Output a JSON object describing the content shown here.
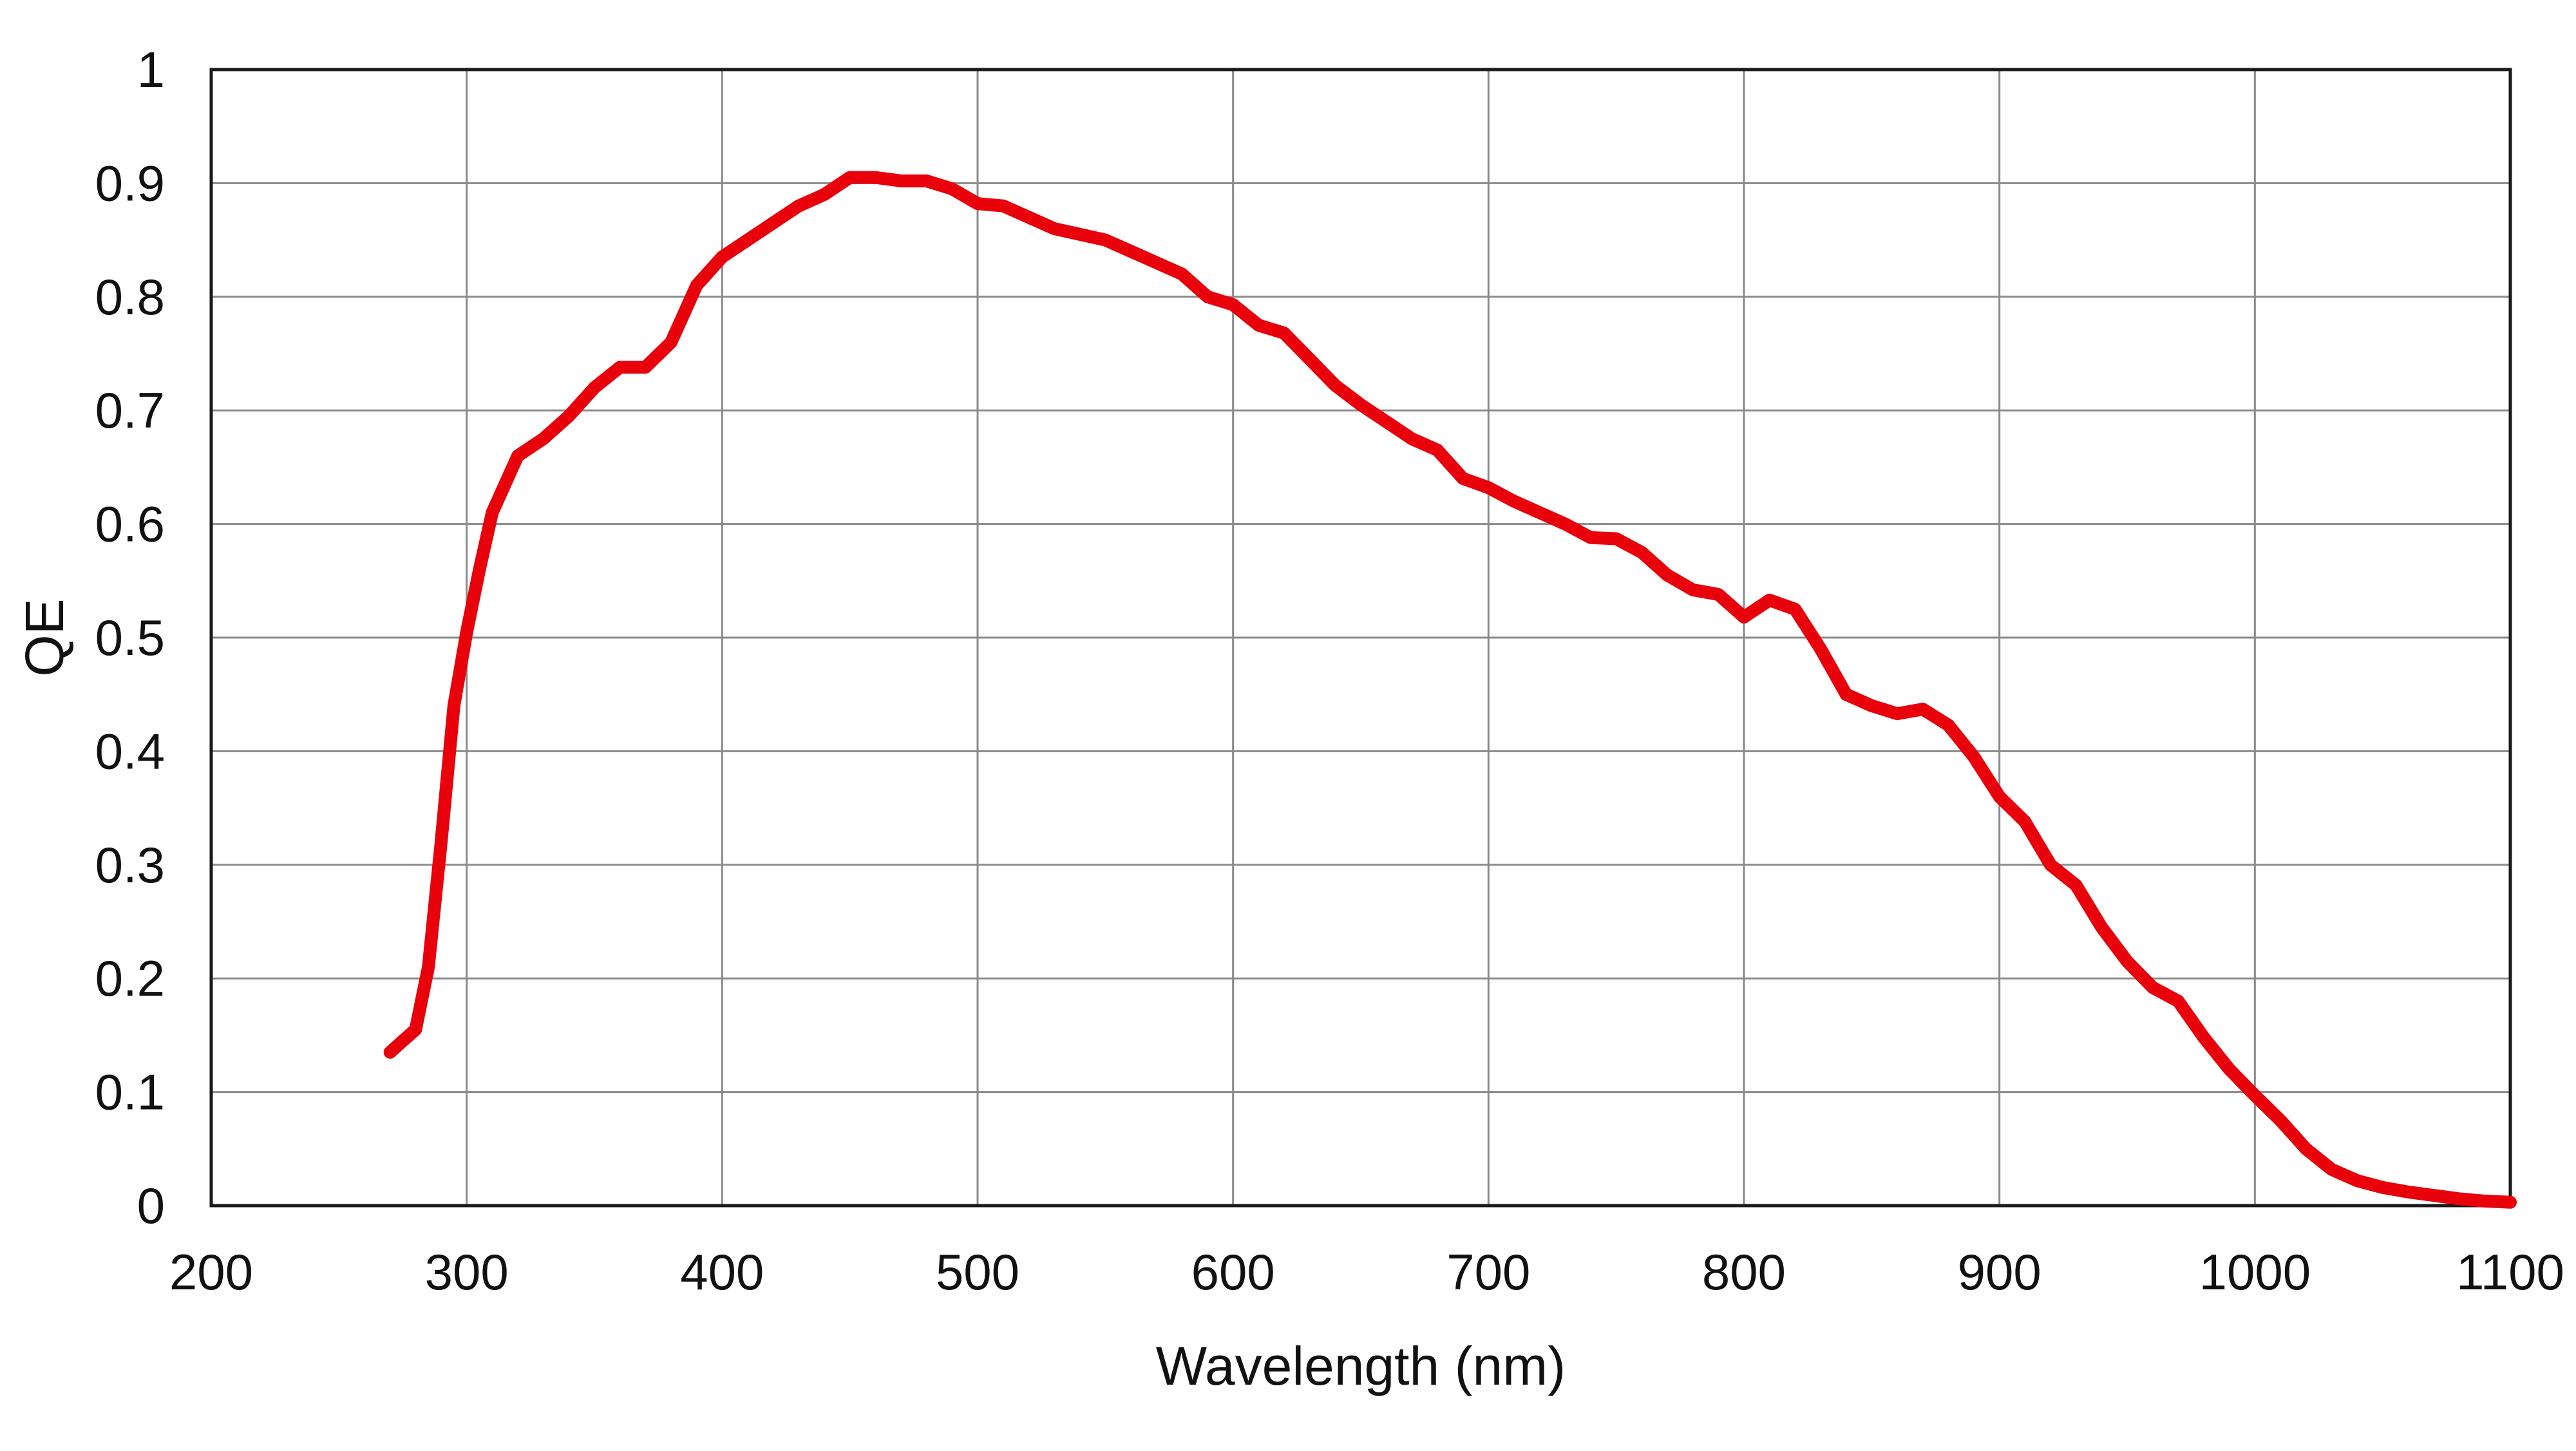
{
  "chart_data": {
    "type": "line",
    "title": "",
    "xlabel": "Wavelength (nm)",
    "ylabel": "QE",
    "xlim": [
      200,
      1100
    ],
    "ylim": [
      0,
      1
    ],
    "x_ticks": [
      200,
      300,
      400,
      500,
      600,
      700,
      800,
      900,
      1000,
      1100
    ],
    "x_tick_labels": [
      "200",
      "300",
      "400",
      "500",
      "600",
      "700",
      "800",
      "900",
      "1000",
      "1100"
    ],
    "y_ticks": [
      0,
      0.1,
      0.2,
      0.3,
      0.4,
      0.5,
      0.6,
      0.7,
      0.8,
      0.9,
      1
    ],
    "y_tick_labels": [
      "0",
      "0.1",
      "0.2",
      "0.3",
      "0.4",
      "0.5",
      "0.6",
      "0.7",
      "0.8",
      "0.9",
      "1"
    ],
    "grid": true,
    "legend": "none",
    "series": [
      {
        "color": "#e8000b",
        "x": [
          270,
          280,
          285,
          290,
          295,
          300,
          305,
          310,
          320,
          330,
          340,
          350,
          360,
          370,
          380,
          390,
          400,
          410,
          420,
          430,
          440,
          450,
          460,
          470,
          480,
          490,
          500,
          510,
          520,
          530,
          540,
          550,
          560,
          570,
          580,
          590,
          600,
          610,
          620,
          630,
          640,
          650,
          660,
          670,
          680,
          690,
          700,
          710,
          720,
          730,
          740,
          750,
          760,
          770,
          780,
          790,
          800,
          810,
          820,
          830,
          840,
          850,
          860,
          870,
          880,
          890,
          900,
          910,
          920,
          930,
          940,
          950,
          960,
          970,
          980,
          990,
          1000,
          1010,
          1020,
          1030,
          1040,
          1050,
          1060,
          1070,
          1080,
          1090,
          1100
        ],
        "y": [
          0.135,
          0.155,
          0.21,
          0.32,
          0.44,
          0.505,
          0.56,
          0.61,
          0.66,
          0.675,
          0.695,
          0.72,
          0.738,
          0.738,
          0.76,
          0.81,
          0.835,
          0.85,
          0.865,
          0.88,
          0.89,
          0.905,
          0.905,
          0.902,
          0.902,
          0.895,
          0.882,
          0.88,
          0.87,
          0.86,
          0.855,
          0.85,
          0.84,
          0.83,
          0.82,
          0.8,
          0.793,
          0.775,
          0.768,
          0.745,
          0.722,
          0.705,
          0.69,
          0.675,
          0.665,
          0.64,
          0.632,
          0.62,
          0.61,
          0.6,
          0.588,
          0.587,
          0.575,
          0.555,
          0.542,
          0.538,
          0.518,
          0.533,
          0.525,
          0.49,
          0.45,
          0.44,
          0.433,
          0.437,
          0.423,
          0.395,
          0.36,
          0.338,
          0.3,
          0.282,
          0.245,
          0.215,
          0.192,
          0.18,
          0.148,
          0.12,
          0.097,
          0.075,
          0.05,
          0.032,
          0.022,
          0.016,
          0.012,
          0.009,
          0.006,
          0.004,
          0.003
        ]
      }
    ]
  }
}
